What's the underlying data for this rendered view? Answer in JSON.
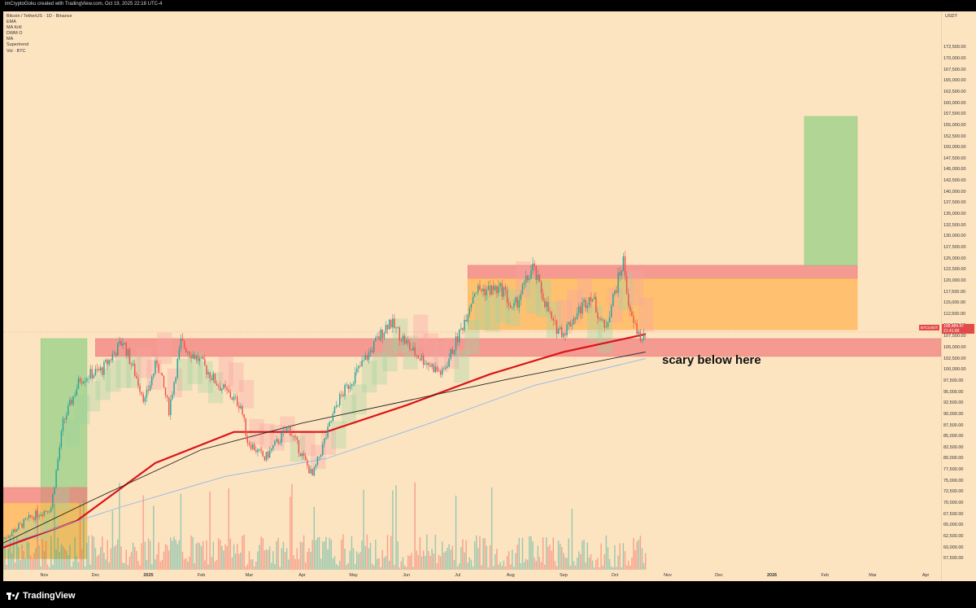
{
  "credit": "imCryptoGoku created with TradingView.com, Oct 19, 2025 22:18 UTC-4",
  "legend": [
    "Bitcoin / TetherUS · 1D · Binance",
    "EMA",
    "MA Krill",
    "DWM O",
    "MA",
    "Supertrend",
    "Vol · BTC"
  ],
  "annotation": "scary below here",
  "footer": {
    "brand": "TradingView"
  },
  "current_price": {
    "symbol": "BTCUSDT",
    "price": "108,484.47",
    "countdown": "21:41:00"
  },
  "colors": {
    "background": "#fde4c1",
    "zone_red": "#f07a7a",
    "zone_orange": "#ffb454",
    "zone_green": "#8ecf82",
    "ma_red": "#d9141a",
    "ma_black": "#222222",
    "ma_blue": "#8fb7e8",
    "candle_up": "#26a69a",
    "candle_down": "#ef5350"
  },
  "chart_data": {
    "type": "candlestick",
    "title": "Bitcoin / TetherUS · 1D · Binance",
    "y_unit": "USDT",
    "ylim": [
      55000,
      177500
    ],
    "y_ticks": [
      "172,500.00",
      "170,000.00",
      "167,500.00",
      "165,000.00",
      "162,500.00",
      "160,000.00",
      "157,500.00",
      "155,000.00",
      "152,500.00",
      "150,000.00",
      "147,500.00",
      "145,000.00",
      "142,500.00",
      "140,000.00",
      "137,500.00",
      "135,000.00",
      "132,500.00",
      "130,000.00",
      "127,500.00",
      "125,000.00",
      "122,500.00",
      "120,000.00",
      "117,500.00",
      "115,000.00",
      "112,500.00",
      "110,000.00",
      "107,500.00",
      "105,000.00",
      "102,500.00",
      "100,000.00",
      "97,500.00",
      "95,000.00",
      "92,500.00",
      "90,000.00",
      "87,500.00",
      "85,000.00",
      "82,500.00",
      "80,000.00",
      "77,500.00",
      "75,000.00",
      "72,500.00",
      "70,000.00",
      "67,500.00",
      "65,000.00",
      "62,500.00",
      "60,000.00",
      "57,500.00"
    ],
    "x_ticks": [
      "Nov",
      "Dec",
      "2025",
      "Feb",
      "Mar",
      "Apr",
      "May",
      "Jun",
      "Jul",
      "Aug",
      "Sep",
      "Oct",
      "Nov",
      "Dec",
      "2026",
      "Feb",
      "Mar",
      "Apr"
    ],
    "xlim": [
      "2024-10-08",
      "2026-04-10"
    ],
    "price_path": [
      [
        "2024-10-08",
        62000
      ],
      [
        "2024-10-25",
        67000
      ],
      [
        "2024-11-05",
        69000
      ],
      [
        "2024-11-12",
        88000
      ],
      [
        "2024-11-22",
        98000
      ],
      [
        "2024-12-05",
        100000
      ],
      [
        "2024-12-17",
        106500
      ],
      [
        "2024-12-30",
        93000
      ],
      [
        "2025-01-06",
        102000
      ],
      [
        "2025-01-13",
        91000
      ],
      [
        "2025-01-20",
        106000
      ],
      [
        "2025-01-31",
        102000
      ],
      [
        "2025-02-10",
        97000
      ],
      [
        "2025-02-24",
        92000
      ],
      [
        "2025-02-28",
        84000
      ],
      [
        "2025-03-10",
        80000
      ],
      [
        "2025-03-24",
        87000
      ],
      [
        "2025-04-07",
        76000
      ],
      [
        "2025-04-22",
        93000
      ],
      [
        "2025-05-09",
        103000
      ],
      [
        "2025-05-22",
        111000
      ],
      [
        "2025-06-05",
        104000
      ],
      [
        "2025-06-22",
        99000
      ],
      [
        "2025-07-03",
        109000
      ],
      [
        "2025-07-11",
        118000
      ],
      [
        "2025-07-28",
        118000
      ],
      [
        "2025-08-02",
        113000
      ],
      [
        "2025-08-14",
        123000
      ],
      [
        "2025-08-26",
        110000
      ],
      [
        "2025-09-01",
        108500
      ],
      [
        "2025-09-17",
        117000
      ],
      [
        "2025-09-25",
        109000
      ],
      [
        "2025-10-06",
        124500
      ],
      [
        "2025-10-10",
        112000
      ],
      [
        "2025-10-17",
        106500
      ],
      [
        "2025-10-19",
        108484
      ]
    ],
    "moving_averages": [
      {
        "name": "EMA",
        "color": "#d9141a",
        "points": [
          [
            "2024-10-08",
            60000
          ],
          [
            "2024-11-20",
            66000
          ],
          [
            "2025-01-05",
            79000
          ],
          [
            "2025-02-20",
            86000
          ],
          [
            "2025-04-15",
            86000
          ],
          [
            "2025-06-01",
            92000
          ],
          [
            "2025-07-20",
            99000
          ],
          [
            "2025-09-01",
            104000
          ],
          [
            "2025-10-19",
            108000
          ]
        ]
      },
      {
        "name": "MA",
        "color": "#222222",
        "points": [
          [
            "2024-10-08",
            61000
          ],
          [
            "2024-12-01",
            71000
          ],
          [
            "2025-02-01",
            82000
          ],
          [
            "2025-04-01",
            88000
          ],
          [
            "2025-06-01",
            93000
          ],
          [
            "2025-08-01",
            98000
          ],
          [
            "2025-10-19",
            104000
          ]
        ]
      },
      {
        "name": "MA",
        "color": "#8fb7e8",
        "points": [
          [
            "2024-10-08",
            60500
          ],
          [
            "2024-12-15",
            69000
          ],
          [
            "2025-02-15",
            76000
          ],
          [
            "2025-04-15",
            80000
          ],
          [
            "2025-06-15",
            88000
          ],
          [
            "2025-08-15",
            96500
          ],
          [
            "2025-10-19",
            102500
          ]
        ]
      }
    ],
    "zones": [
      {
        "color": "red",
        "x": [
          "2024-12-01",
          "2026-04-10"
        ],
        "y": [
          103000,
          107000
        ]
      },
      {
        "color": "red",
        "x": [
          "2025-07-07",
          "2026-02-20"
        ],
        "y": [
          120500,
          123500
        ]
      },
      {
        "color": "orange",
        "x": [
          "2025-07-07",
          "2026-02-20"
        ],
        "y": [
          109000,
          120500
        ]
      },
      {
        "color": "green",
        "x": [
          "2026-01-20",
          "2026-02-20"
        ],
        "y": [
          123500,
          157000
        ]
      },
      {
        "color": "green",
        "x": [
          "2024-10-30",
          "2024-11-26"
        ],
        "y": [
          57500,
          107000
        ]
      },
      {
        "color": "red",
        "x": [
          "2024-10-08",
          "2024-11-26"
        ],
        "y": [
          70000,
          73500
        ]
      },
      {
        "color": "orange",
        "x": [
          "2024-10-08",
          "2024-11-26"
        ],
        "y": [
          57500,
          70000
        ]
      }
    ]
  }
}
